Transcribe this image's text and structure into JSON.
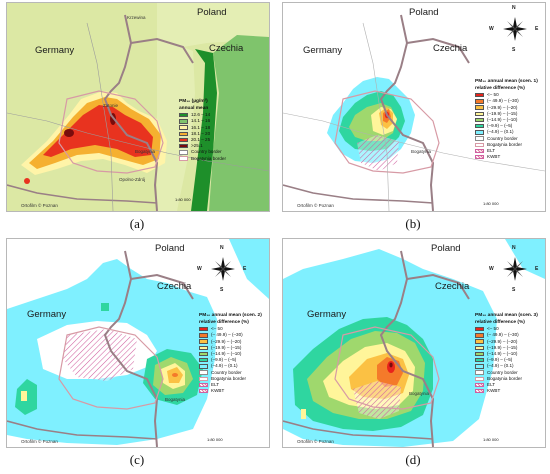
{
  "panels": {
    "a": {
      "letter": "(a)",
      "legend_title": "PM₁₀ (µg/m³)",
      "legend_subtitle": "annual mean",
      "legend_items": [
        {
          "label": "12.6 – 14",
          "color": "#1e8f2a"
        },
        {
          "label": "14.1 – 16",
          "color": "#7fc46c"
        },
        {
          "label": "16.1 – 18",
          "color": "#fff4a8"
        },
        {
          "label": "18.1 – 20",
          "color": "#f5b030"
        },
        {
          "label": "20.1 – 25",
          "color": "#e8331f"
        },
        {
          "label": ">25.1",
          "color": "#7a0c0c"
        },
        {
          "label": "Country border",
          "color": "#8b8b8b"
        },
        {
          "label": "Bogatynia border",
          "color": "#d79aa5"
        }
      ]
    },
    "b": {
      "letter": "(b)",
      "legend_title": "PM₁₀ annual mean (scen. 1)",
      "legend_subtitle": "relative difference (%)",
      "legend_items": [
        {
          "label": "<– 50",
          "color": "#e8231c"
        },
        {
          "label": "(– 49.9) – (–30)",
          "color": "#f47a2a"
        },
        {
          "label": "(–29.9) – (–20)",
          "color": "#fbc144"
        },
        {
          "label": "(–19.9) – (–15)",
          "color": "#fff59a"
        },
        {
          "label": "(–14.9) – (–10)",
          "color": "#9fd86d"
        },
        {
          "label": "(–9.9) – (–5)",
          "color": "#2fd6a0"
        },
        {
          "label": "(–4.9) – (0.1)",
          "color": "#7ff0ff"
        },
        {
          "label": "Country border",
          "color": "#8b8b8b"
        },
        {
          "label": "Bogatynia border",
          "color": "#d79aa5"
        },
        {
          "label": "ELT",
          "color": "#d060a0"
        },
        {
          "label": "KWBT",
          "color": "#d060a0"
        }
      ]
    },
    "c": {
      "letter": "(c)",
      "legend_title": "PM₁₀ annual mean (scen. 2)",
      "legend_subtitle": "relative difference (%)",
      "legend_items": [
        {
          "label": "<– 50",
          "color": "#e8231c"
        },
        {
          "label": "(– 49.9) – (–30)",
          "color": "#f47a2a"
        },
        {
          "label": "(–29.9) – (–20)",
          "color": "#fbc144"
        },
        {
          "label": "(–19.9) – (–15)",
          "color": "#fff59a"
        },
        {
          "label": "(–14.9) – (–10)",
          "color": "#9fd86d"
        },
        {
          "label": "(–9.9) – (–5)",
          "color": "#2fd6a0"
        },
        {
          "label": "(–4.9) – (0.1)",
          "color": "#7ff0ff"
        },
        {
          "label": "Country border",
          "color": "#8b8b8b"
        },
        {
          "label": "Bogatynia border",
          "color": "#d79aa5"
        },
        {
          "label": "ELT",
          "color": "#d060a0"
        },
        {
          "label": "KWBT",
          "color": "#d060a0"
        }
      ]
    },
    "d": {
      "letter": "(d)",
      "legend_title": "PM₁₀ annual mean (scen. 3)",
      "legend_subtitle": "relative difference (%)",
      "legend_items": [
        {
          "label": "<– 50",
          "color": "#e8231c"
        },
        {
          "label": "(– 49.9) – (–30)",
          "color": "#f47a2a"
        },
        {
          "label": "(–29.9) – (–20)",
          "color": "#fbc144"
        },
        {
          "label": "(–19.9) – (–15)",
          "color": "#fff59a"
        },
        {
          "label": "(–14.9) – (–10)",
          "color": "#9fd86d"
        },
        {
          "label": "(–9.9) – (–5)",
          "color": "#2fd6a0"
        },
        {
          "label": "(–4.9) – (0.1)",
          "color": "#7ff0ff"
        },
        {
          "label": "Country border",
          "color": "#8b8b8b"
        },
        {
          "label": "Bogatynia border",
          "color": "#d79aa5"
        },
        {
          "label": "ELT",
          "color": "#d060a0"
        },
        {
          "label": "KWBT",
          "color": "#d060a0"
        }
      ]
    }
  },
  "map_labels": {
    "poland": "Poland",
    "germany": "Germany",
    "czechia": "Czechia",
    "scale": "1:80 000",
    "scale_unit": "4 km",
    "credit": "Ortofilm © Poznan",
    "towns": [
      "Krzewina",
      "Bogatynia",
      "Zatonie",
      "Opolno-Zdrój",
      "Sieniawka",
      "Porajów",
      "Zittau",
      "Hradek nad Nisou",
      "Turoszów",
      "Działoszyn"
    ]
  },
  "compass": {
    "n": "N",
    "s": "S",
    "e": "E",
    "w": "W"
  },
  "colors": {
    "background_a": "#dce8a4",
    "czechia_green": "#1e8f2a",
    "country_border": "#9a7f86",
    "cyan": "#7ff0ff",
    "teal": "#2fd6a0"
  }
}
